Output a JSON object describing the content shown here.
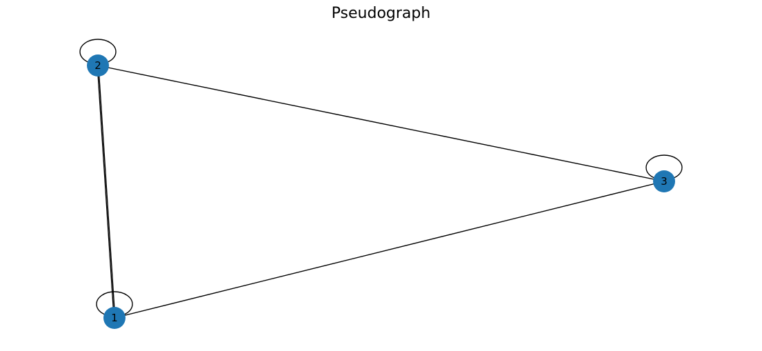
{
  "title": "Pseudograph",
  "style": {
    "node_color": "#1f77b4",
    "edge_color": "#000000",
    "label_color": "#000000"
  },
  "nodes": [
    {
      "id": "1",
      "label": "1",
      "self_loop": true
    },
    {
      "id": "2",
      "label": "2",
      "self_loop": true
    },
    {
      "id": "3",
      "label": "3",
      "self_loop": true
    }
  ],
  "edges": [
    {
      "source": "1",
      "target": "2"
    },
    {
      "source": "1",
      "target": "2"
    },
    {
      "source": "2",
      "target": "3"
    },
    {
      "source": "1",
      "target": "3"
    }
  ]
}
